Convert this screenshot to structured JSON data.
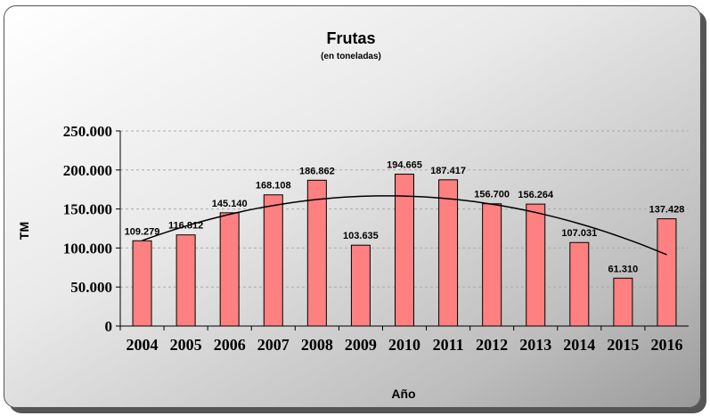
{
  "chart_data": {
    "type": "bar",
    "title": "Frutas",
    "subtitle": "(en toneladas)",
    "xlabel": "Año",
    "ylabel": "TM",
    "categories": [
      "2004",
      "2005",
      "2006",
      "2007",
      "2008",
      "2009",
      "2010",
      "2011",
      "2012",
      "2013",
      "2014",
      "2015",
      "2016"
    ],
    "values": [
      109279,
      116812,
      145140,
      168108,
      186862,
      103635,
      194665,
      187417,
      156700,
      156264,
      107031,
      61310,
      137428
    ],
    "data_labels": [
      "109.279",
      "116.812",
      "145.140",
      "168.108",
      "186.862",
      "103.635",
      "194.665",
      "187.417",
      "156.700",
      "156.264",
      "107.031",
      "61.310",
      "137.428"
    ],
    "ylim": [
      0,
      250000
    ],
    "yticks": [
      0,
      50000,
      100000,
      150000,
      200000,
      250000
    ],
    "ytick_labels": [
      "0",
      "50.000",
      "100.000",
      "150.000",
      "200.000",
      "250.000"
    ],
    "grid": true,
    "trendline": "polynomial",
    "colors": {
      "bar_fill": "#ff8080",
      "bar_stroke": "#000000",
      "trend": "#000000",
      "grid": "#aaaaaa"
    }
  }
}
